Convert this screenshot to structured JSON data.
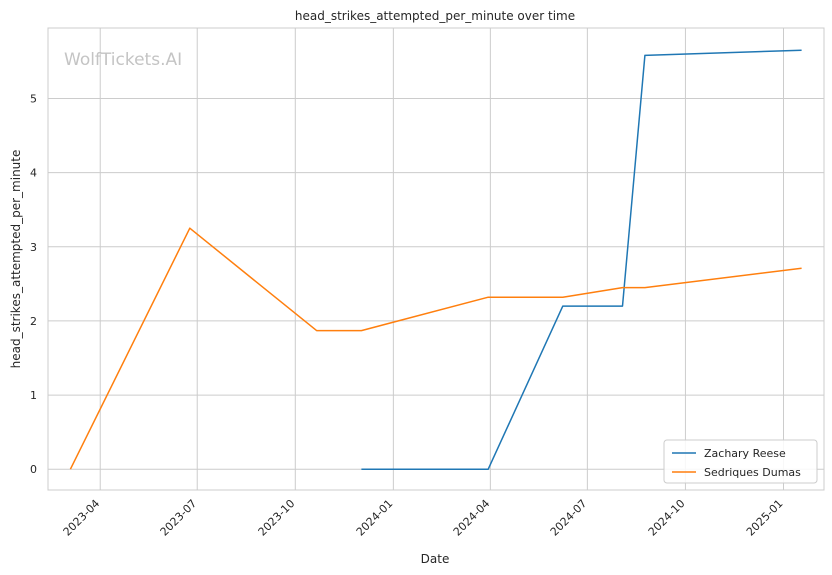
{
  "chart_data": {
    "type": "line",
    "title": "head_strikes_attempted_per_minute over time",
    "xlabel": "Date",
    "ylabel": "head_strikes_attempted_per_minute",
    "watermark": "WolfTickets.AI",
    "x_ticks": [
      "2023-04",
      "2023-07",
      "2023-10",
      "2024-01",
      "2024-04",
      "2024-07",
      "2024-10",
      "2025-01"
    ],
    "y_ticks": [
      0,
      1,
      2,
      3,
      4,
      5
    ],
    "xlim": [
      "2023-02-11",
      "2025-02-08"
    ],
    "ylim": [
      -0.28,
      5.95
    ],
    "grid": true,
    "legend_position": "lower-right",
    "series": [
      {
        "name": "Zachary Reese",
        "color": "#1f77b4",
        "points": [
          {
            "x": "2023-12-02",
            "y": 0.0
          },
          {
            "x": "2024-03-30",
            "y": 0.0
          },
          {
            "x": "2024-06-08",
            "y": 2.2
          },
          {
            "x": "2024-08-03",
            "y": 2.2
          },
          {
            "x": "2024-08-24",
            "y": 5.58
          },
          {
            "x": "2025-01-18",
            "y": 5.65
          }
        ]
      },
      {
        "name": "Sedriques Dumas",
        "color": "#ff7f0e",
        "points": [
          {
            "x": "2023-03-04",
            "y": 0.0
          },
          {
            "x": "2023-06-24",
            "y": 3.25
          },
          {
            "x": "2023-10-21",
            "y": 1.87
          },
          {
            "x": "2023-12-02",
            "y": 1.87
          },
          {
            "x": "2024-03-30",
            "y": 2.32
          },
          {
            "x": "2024-06-08",
            "y": 2.32
          },
          {
            "x": "2024-08-03",
            "y": 2.45
          },
          {
            "x": "2024-08-24",
            "y": 2.45
          },
          {
            "x": "2025-01-18",
            "y": 2.71
          }
        ]
      }
    ]
  }
}
